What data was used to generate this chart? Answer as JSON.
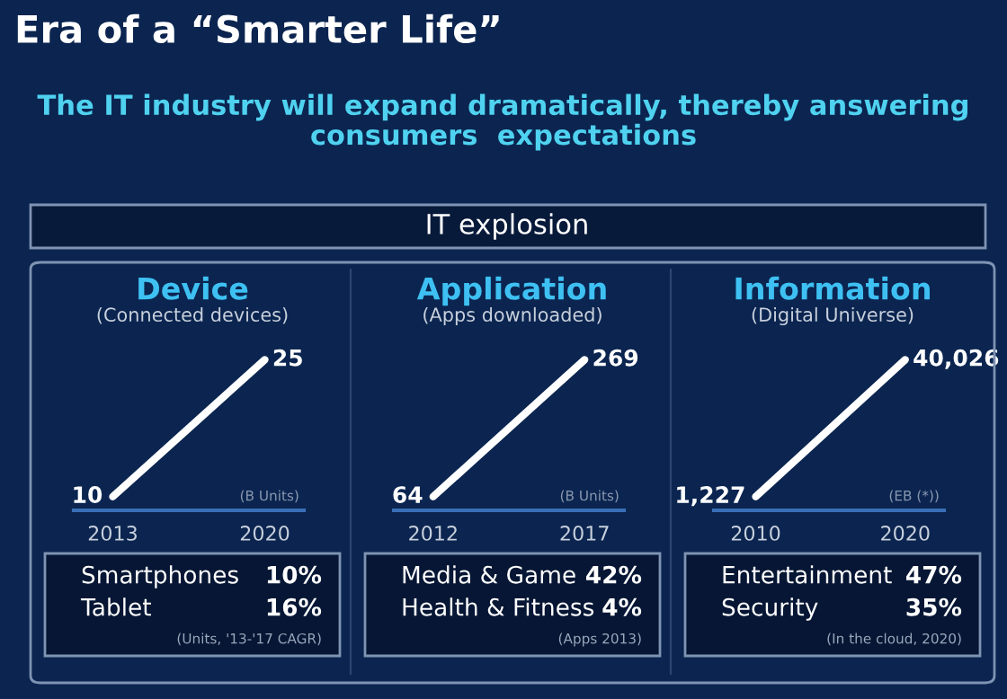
{
  "chart_data": [
    {
      "type": "other",
      "title": "Era of a “Smarter Life”",
      "subtitle": "The IT industry will expand dramatically, thereby answering\nconsumers  expectations",
      "annotations": [
        "IT explosion"
      ]
    },
    {
      "type": "line",
      "title": "Device",
      "subtitle": "(Connected devices)",
      "x": [
        2013,
        2020
      ],
      "xlim": [
        2011.2,
        2021.8
      ],
      "xticks": [
        2013,
        2020
      ],
      "series": [
        {
          "color": "#ffffff",
          "values": [
            10,
            25
          ],
          "value_labels": [
            "10",
            "25"
          ]
        }
      ],
      "annotations": [
        "(B Units)",
        "Smartphones",
        "10%",
        "Tablet",
        "16%",
        "(Units, '13-'17 CAGR)"
      ]
    },
    {
      "type": "line",
      "title": "Application",
      "subtitle": "(Apps downloaded)",
      "x": [
        2012,
        2017
      ],
      "xlim": [
        2010.7,
        2018.3
      ],
      "xticks": [
        2012,
        2017
      ],
      "series": [
        {
          "color": "#ffffff",
          "values": [
            64,
            269
          ],
          "value_labels": [
            "64",
            "269"
          ]
        }
      ],
      "annotations": [
        "(B Units)",
        "Media & Game",
        "42%",
        "Health & Fitness",
        "4%",
        "(Apps 2013)"
      ]
    },
    {
      "type": "line",
      "title": "Information",
      "subtitle": "(Digital Universe)",
      "x": [
        2010,
        2020
      ],
      "xlim": [
        2007.2,
        2022.6
      ],
      "xticks": [
        2010,
        2020
      ],
      "series": [
        {
          "color": "#ffffff",
          "values": [
            1227,
            40026
          ],
          "value_labels": [
            "1,227",
            "40,026"
          ]
        }
      ],
      "annotations": [
        "(EB (*))",
        "Entertainment",
        "47%",
        "Security",
        "35%",
        "(In the cloud, 2020)"
      ]
    }
  ]
}
